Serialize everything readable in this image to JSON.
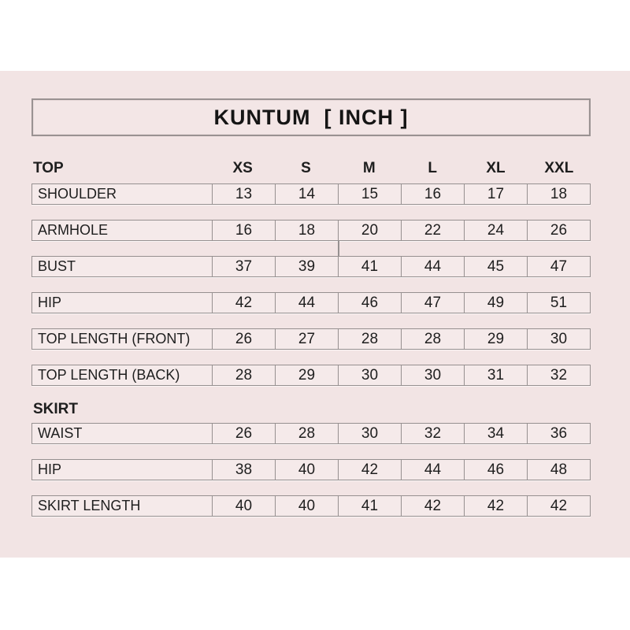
{
  "title": "KUNTUM  [ INCH ]",
  "colors": {
    "outer_background": "#ffffff",
    "panel_pink": "#f2e4e4",
    "cell_fill": "#f5eaea",
    "border_gray": "#969090",
    "text": "#1e1e1e"
  },
  "chart_data": [
    {
      "type": "table",
      "title": "KUNTUM  [ INCH ]",
      "section": "TOP",
      "columns": [
        "XS",
        "S",
        "M",
        "L",
        "XL",
        "XXL"
      ],
      "rows": [
        {
          "label": "SHOULDER",
          "values": [
            13,
            14,
            15,
            16,
            17,
            18
          ]
        },
        {
          "label": "ARMHOLE",
          "values": [
            16,
            18,
            20,
            22,
            24,
            26
          ]
        },
        {
          "label": "BUST",
          "values": [
            37,
            39,
            41,
            44,
            45,
            47
          ]
        },
        {
          "label": "HIP",
          "values": [
            42,
            44,
            46,
            47,
            49,
            51
          ]
        },
        {
          "label": "TOP LENGTH (FRONT)",
          "values": [
            26,
            27,
            28,
            28,
            29,
            30
          ]
        },
        {
          "label": "TOP LENGTH (BACK)",
          "values": [
            28,
            29,
            30,
            30,
            31,
            32
          ]
        }
      ]
    },
    {
      "type": "table",
      "section": "SKIRT",
      "columns": [
        "XS",
        "S",
        "M",
        "L",
        "XL",
        "XXL"
      ],
      "rows": [
        {
          "label": "WAIST",
          "values": [
            26,
            28,
            30,
            32,
            34,
            36
          ]
        },
        {
          "label": "HIP",
          "values": [
            38,
            40,
            42,
            44,
            46,
            48
          ]
        },
        {
          "label": "SKIRT LENGTH",
          "values": [
            40,
            40,
            41,
            42,
            42,
            42
          ]
        }
      ]
    }
  ]
}
